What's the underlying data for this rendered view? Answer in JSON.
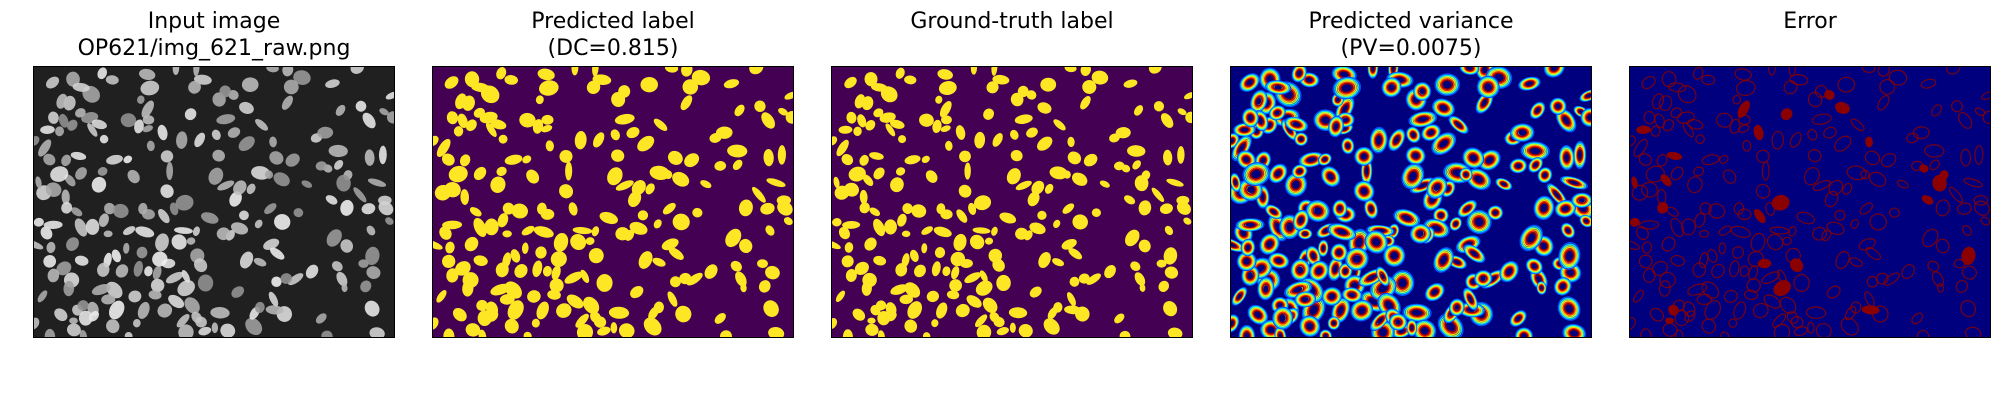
{
  "figure": {
    "panels": [
      {
        "id": "input",
        "kind": "input",
        "title_lines": [
          "Input image",
          "OP621/img_621_raw.png"
        ]
      },
      {
        "id": "predicted-label",
        "kind": "label",
        "title_lines": [
          "Predicted label",
          "(DC=0.815)"
        ]
      },
      {
        "id": "ground-truth",
        "kind": "label",
        "title_lines": [
          "Ground-truth label"
        ]
      },
      {
        "id": "predicted-variance",
        "kind": "variance",
        "title_lines": [
          "Predicted variance",
          "(PV=0.0075)"
        ]
      },
      {
        "id": "error",
        "kind": "error",
        "title_lines": [
          "Error"
        ]
      }
    ]
  },
  "colors": {
    "label_background": "#440154",
    "label_foreground": "#fde725",
    "jet_background": "#00007f",
    "error_foreground": "#8b0000",
    "input_background": "#202020"
  }
}
